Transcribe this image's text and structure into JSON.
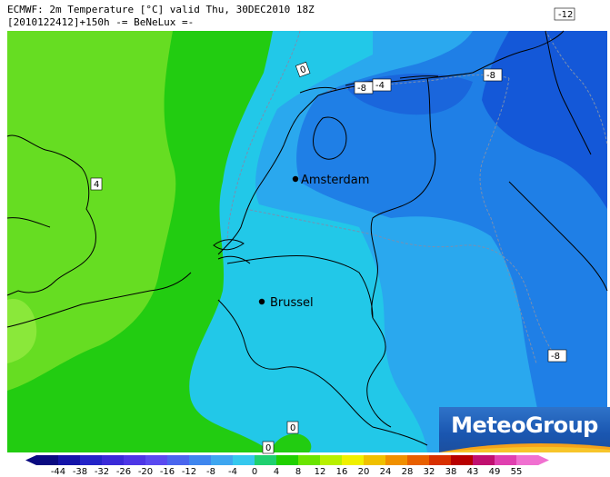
{
  "header": {
    "line1": "ECMWF: 2m Temperature [°C] valid Thu, 30DEC2010 18Z",
    "line2": "[2010122412]+150h -= BeNeLux =-"
  },
  "cities": [
    {
      "name": "Amsterdam"
    },
    {
      "name": "Brussel"
    }
  ],
  "contour_labels": [
    "-12",
    "0",
    "-8",
    "-4",
    "-8",
    "4",
    "-8",
    "0",
    "0"
  ],
  "logo": {
    "text": "MeteoGroup"
  },
  "colorbar": {
    "labels": [
      "-44",
      "-38",
      "-32",
      "-26",
      "-20",
      "-16",
      "-12",
      "-8",
      "-4",
      "0",
      "4",
      "8",
      "12",
      "16",
      "20",
      "24",
      "28",
      "32",
      "38",
      "43",
      "49",
      "55"
    ],
    "colors": [
      "#0a0a80",
      "#1414a8",
      "#2424c8",
      "#3a2ad8",
      "#4d36e6",
      "#5a4af0",
      "#4a66ee",
      "#3f86ee",
      "#3ea6f0",
      "#35c8ee",
      "#1fd070",
      "#20d000",
      "#6ae400",
      "#b8f000",
      "#f0f000",
      "#f0c000",
      "#f09000",
      "#e86000",
      "#d83000",
      "#b80000",
      "#c01070",
      "#e040b0",
      "#f070d0"
    ]
  },
  "map_colors": {
    "warm_green": "#66dd22",
    "green": "#22cc11",
    "cyan": "#22c8e8",
    "light_blue": "#2aa8ee",
    "blue": "#1f7fe6",
    "deep_blue": "#1458d8"
  }
}
